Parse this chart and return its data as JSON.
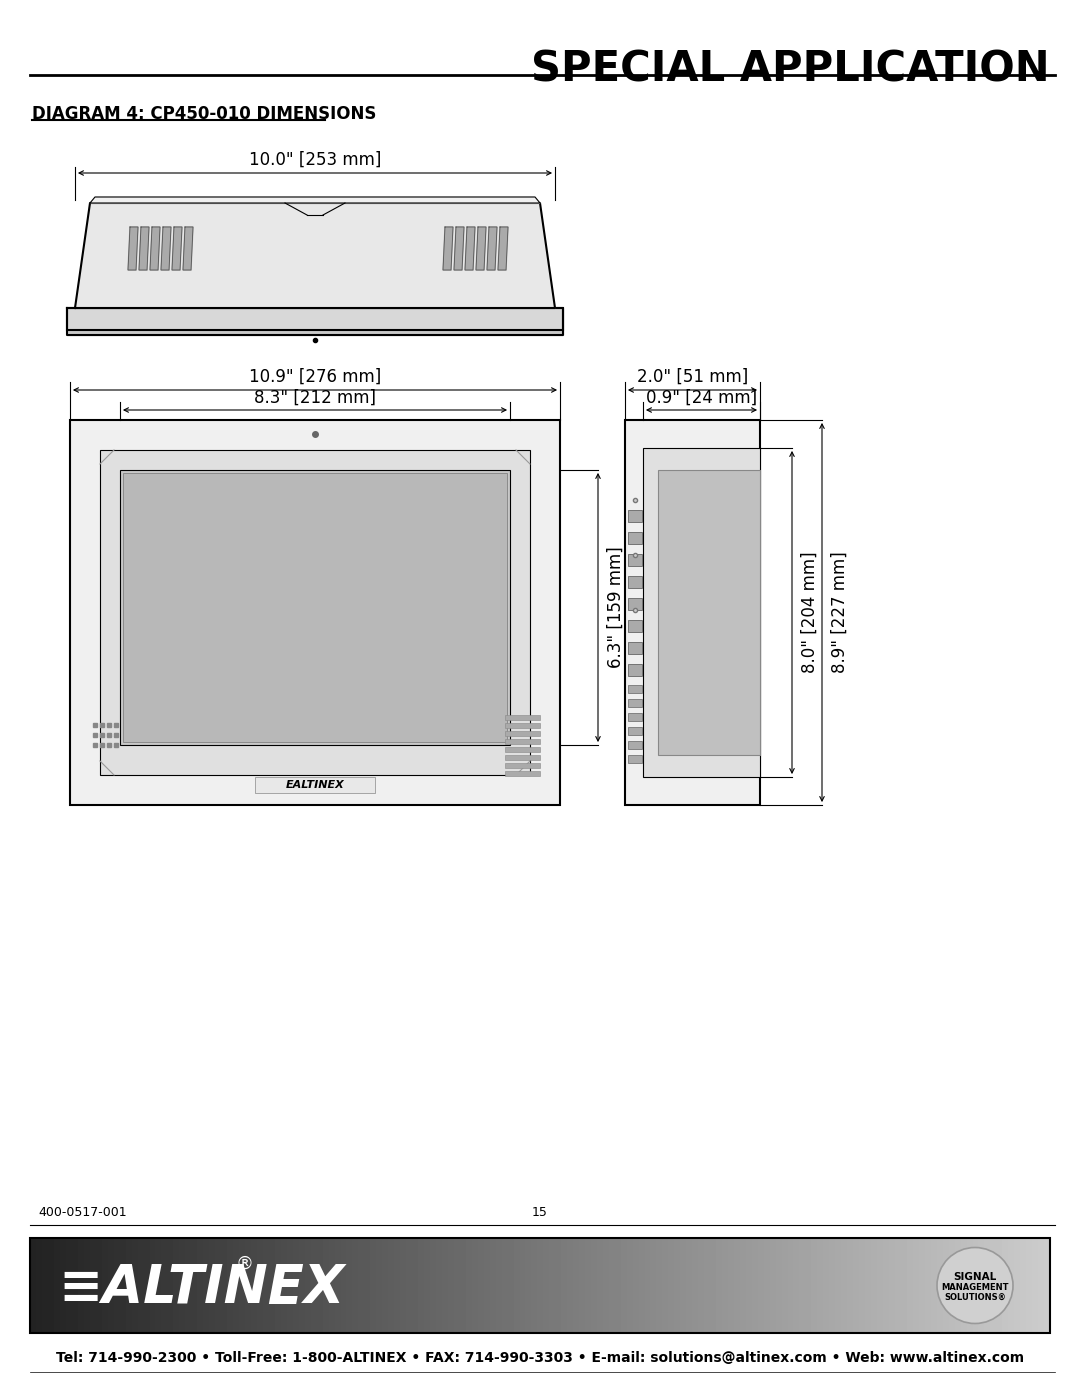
{
  "title": "SPECIAL APPLICATION",
  "diagram_title": "DIAGRAM 4: CP450-010 DIMENSIONS",
  "dim_top_width": "10.0\" [253 mm]",
  "dim_front_width": "10.9\" [276 mm]",
  "dim_screen_width": "8.3\" [212 mm]",
  "dim_screen_height": "6.3\" [159 mm]",
  "dim_depth_outer": "2.0\" [51 mm]",
  "dim_depth_inner": "0.9\" [24 mm]",
  "dim_side_height_inner": "8.0\" [204 mm]",
  "dim_side_height_outer": "8.9\" [227 mm]",
  "footer_left": "400-0517-001",
  "footer_center": "15",
  "footer_contact": "Tel: 714-990-2300 • Toll-Free: 1-800-ALTINEX • FAX: 714-990-3303 • E-mail: solutions@altinex.com • Web: www.altinex.com",
  "line_color": "#000000",
  "bg_color": "#ffffff",
  "body_color": "#e8e8e8"
}
